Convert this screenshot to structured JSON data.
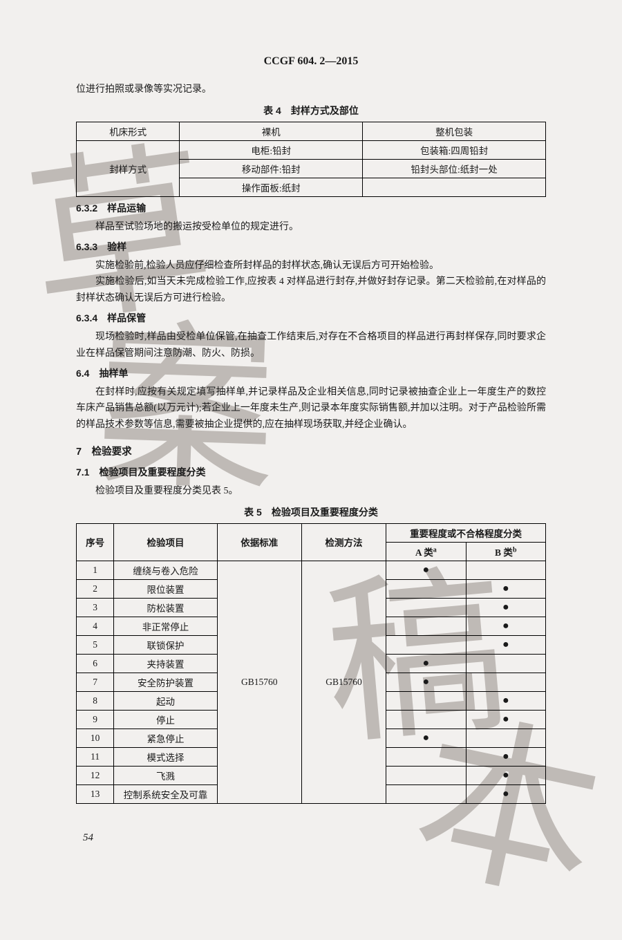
{
  "header": "CCGF 604. 2—2015",
  "intro_line": "位进行拍照或录像等实况记录。",
  "table4": {
    "caption": "表 4　封样方式及部位",
    "row1_label": "机床形式",
    "col1": "裸机",
    "col2": "整机包装",
    "row2_label": "封样方式",
    "r1c1": "电柜:铅封",
    "r1c2": "包装箱:四周铅封",
    "r2c1": "移动部件:铅封",
    "r2c2": "铅封头部位:纸封一处",
    "r3c1": "操作面板:纸封",
    "r3c2": ""
  },
  "s632_head": "6.3.2　样品运输",
  "s632_p1": "样品至试验场地的搬运按受检单位的规定进行。",
  "s633_head": "6.3.3　验样",
  "s633_p1": "实施检验前,检验人员应仔细检查所封样品的封样状态,确认无误后方可开始检验。",
  "s633_p2": "实施检验后,如当天未完成检验工作,应按表 4 对样品进行封存,并做好封存记录。第二天检验前,在对样品的封样状态确认无误后方可进行检验。",
  "s634_head": "6.3.4　样品保管",
  "s634_p1": "现场检验时,样品由受检单位保管,在抽查工作结束后,对存在不合格项目的样品进行再封样保存,同时要求企业在样品保管期间注意防潮、防火、防损。",
  "s64_head": "6.4　抽样单",
  "s64_p1": "在封样时,应按有关规定填写抽样单,并记录样品及企业相关信息,同时记录被抽查企业上一年度生产的数控车床产品销售总额(以万元计);若企业上一年度未生产,则记录本年度实际销售额,并加以注明。对于产品检验所需的样品技术参数等信息,需要被抽企业提供的,应在抽样现场获取,并经企业确认。",
  "s7_head": "7　检验要求",
  "s71_head": "7.1　检验项目及重要程度分类",
  "s71_p1": "检验项目及重要程度分类见表 5。",
  "table5": {
    "caption": "表 5　检验项目及重要程度分类",
    "h_seq": "序号",
    "h_item": "检验项目",
    "h_std": "依据标准",
    "h_method": "检测方法",
    "h_grade": "重要程度或不合格程度分类",
    "h_a": "A 类",
    "h_a_sup": "a",
    "h_b": "B 类",
    "h_b_sup": "b",
    "std_val": "GB15760",
    "method_val": "GB15760",
    "rows": [
      {
        "n": "1",
        "name": "缠绕与卷入危险",
        "a": "●",
        "b": ""
      },
      {
        "n": "2",
        "name": "限位装置",
        "a": "",
        "b": "●"
      },
      {
        "n": "3",
        "name": "防松装置",
        "a": "",
        "b": "●"
      },
      {
        "n": "4",
        "name": "非正常停止",
        "a": "",
        "b": "●"
      },
      {
        "n": "5",
        "name": "联锁保护",
        "a": "",
        "b": "●"
      },
      {
        "n": "6",
        "name": "夹持装置",
        "a": "●",
        "b": ""
      },
      {
        "n": "7",
        "name": "安全防护装置",
        "a": "●",
        "b": ""
      },
      {
        "n": "8",
        "name": "起动",
        "a": "",
        "b": "●"
      },
      {
        "n": "9",
        "name": "停止",
        "a": "",
        "b": "●"
      },
      {
        "n": "10",
        "name": "紧急停止",
        "a": "●",
        "b": ""
      },
      {
        "n": "11",
        "name": "模式选择",
        "a": "",
        "b": "●"
      },
      {
        "n": "12",
        "name": "飞溅",
        "a": "",
        "b": "●"
      },
      {
        "n": "13",
        "name": "控制系统安全及可靠",
        "a": "",
        "b": "●"
      }
    ]
  },
  "page_num": "54",
  "watermark_chars": {
    "c1": "草",
    "c2": "案",
    "c3": "稿",
    "c4": "本"
  }
}
